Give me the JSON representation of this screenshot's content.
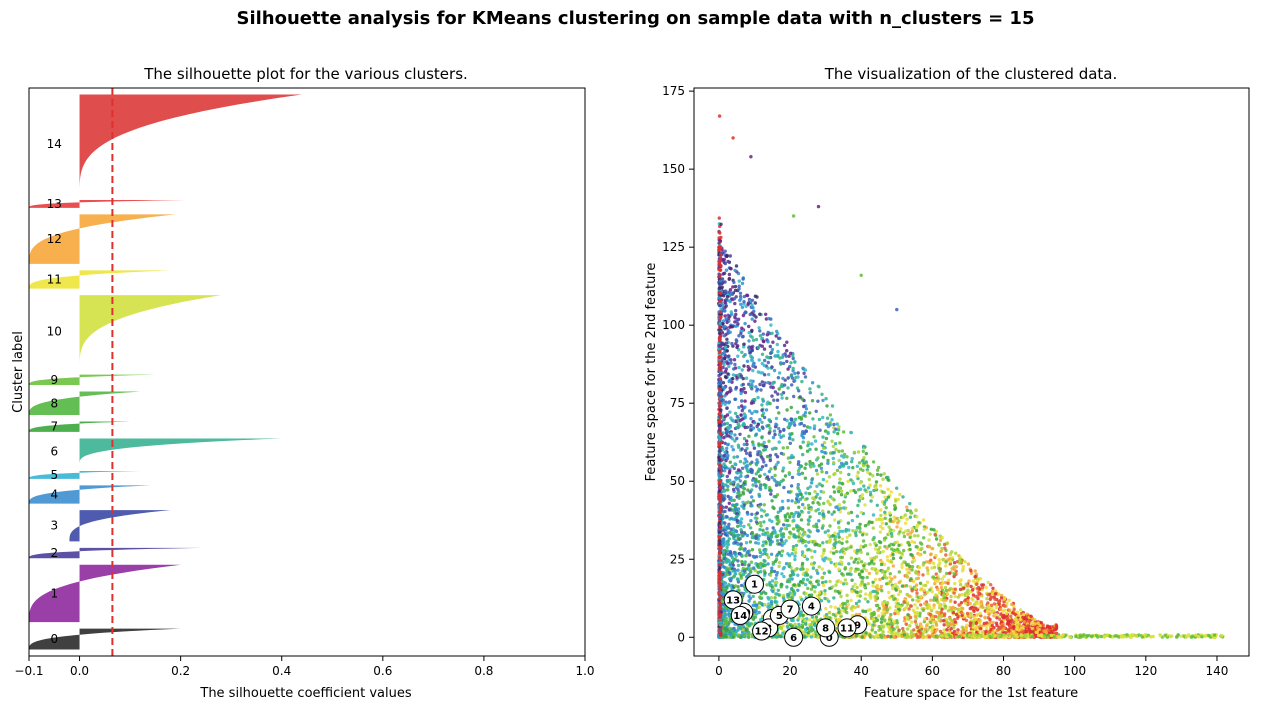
{
  "title": "Silhouette analysis for KMeans clustering on sample data with n_clusters = 15",
  "chart_data": [
    {
      "type": "area",
      "title": "The silhouette plot for the various clusters.",
      "xlabel": "The silhouette coefficient values",
      "ylabel": "Cluster label",
      "xlim": [
        -0.1,
        1.0
      ],
      "xticks": [
        "−0.1",
        "0.0",
        "0.2",
        "0.4",
        "0.6",
        "0.8",
        "1.0"
      ],
      "xtick_values": [
        -0.1,
        0.0,
        0.2,
        0.4,
        0.6,
        0.8,
        1.0
      ],
      "average_silhouette": 0.065,
      "clusters": [
        {
          "label": "0",
          "size": 8,
          "min": -0.1,
          "max": 0.2,
          "color": "#2b2b2b"
        },
        {
          "label": "1",
          "size": 22,
          "min": -0.1,
          "max": 0.2,
          "color": "#8f2a9e"
        },
        {
          "label": "2",
          "size": 4,
          "min": -0.1,
          "max": 0.24,
          "color": "#4a3f9b"
        },
        {
          "label": "3",
          "size": 12,
          "min": -0.02,
          "max": 0.18,
          "color": "#3b49a6"
        },
        {
          "label": "4",
          "size": 7,
          "min": -0.1,
          "max": 0.14,
          "color": "#3c8fd0"
        },
        {
          "label": "5",
          "size": 3,
          "min": -0.1,
          "max": 0.12,
          "color": "#35b3d4"
        },
        {
          "label": "6",
          "size": 10,
          "min": 0.0,
          "max": 0.4,
          "color": "#3ab393"
        },
        {
          "label": "7",
          "size": 4,
          "min": -0.1,
          "max": 0.1,
          "color": "#3aa63a"
        },
        {
          "label": "8",
          "size": 9,
          "min": -0.1,
          "max": 0.12,
          "color": "#52b840"
        },
        {
          "label": "9",
          "size": 4,
          "min": -0.1,
          "max": 0.15,
          "color": "#6dc23d"
        },
        {
          "label": "10",
          "size": 28,
          "min": 0.0,
          "max": 0.28,
          "color": "#d2e140"
        },
        {
          "label": "11",
          "size": 7,
          "min": -0.1,
          "max": 0.18,
          "color": "#ede439"
        },
        {
          "label": "12",
          "size": 19,
          "min": -0.1,
          "max": 0.19,
          "color": "#f7a63a"
        },
        {
          "label": "13",
          "size": 3,
          "min": -0.1,
          "max": 0.21,
          "color": "#e83b3b"
        },
        {
          "label": "14",
          "size": 38,
          "min": 0.0,
          "max": 0.44,
          "color": "#dc3a38"
        }
      ]
    },
    {
      "type": "scatter",
      "title": "The visualization of the clustered data.",
      "xlabel": "Feature space for the 1st feature",
      "ylabel": "Feature space for the 2nd feature",
      "xlim": [
        -7,
        149
      ],
      "ylim": [
        -6,
        176
      ],
      "xticks": [
        0,
        20,
        40,
        60,
        80,
        100,
        120,
        140
      ],
      "yticks": [
        0,
        25,
        50,
        75,
        100,
        125,
        150,
        175
      ],
      "cluster_centers": [
        {
          "label": "0",
          "x": 31,
          "y": 0
        },
        {
          "label": "1",
          "x": 10,
          "y": 17
        },
        {
          "label": "2",
          "x": 15,
          "y": 6
        },
        {
          "label": "3",
          "x": 14,
          "y": 3
        },
        {
          "label": "4",
          "x": 26,
          "y": 10
        },
        {
          "label": "5",
          "x": 17,
          "y": 7
        },
        {
          "label": "6",
          "x": 21,
          "y": 0
        },
        {
          "label": "7",
          "x": 20,
          "y": 9
        },
        {
          "label": "8",
          "x": 30,
          "y": 3
        },
        {
          "label": "9",
          "x": 39,
          "y": 4
        },
        {
          "label": "10",
          "x": 7,
          "y": 8
        },
        {
          "label": "11",
          "x": 36,
          "y": 3
        },
        {
          "label": "12",
          "x": 12,
          "y": 2
        },
        {
          "label": "13",
          "x": 4,
          "y": 12
        },
        {
          "label": "14",
          "x": 6,
          "y": 7
        }
      ],
      "palette": [
        "#3a2a6b",
        "#6b1f8a",
        "#4a3fa0",
        "#3d61b8",
        "#2f8fd0",
        "#34b7c8",
        "#2fb38b",
        "#3aa63a",
        "#63bd3a",
        "#a8d33a",
        "#d9e23a",
        "#f2d93a",
        "#f7a63a",
        "#e85a3a",
        "#dc2f2f"
      ]
    }
  ]
}
